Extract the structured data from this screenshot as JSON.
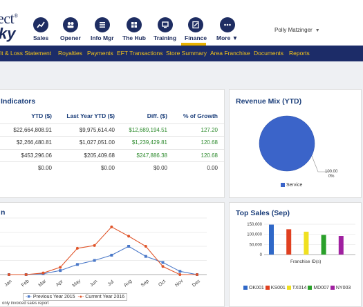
{
  "brand": {
    "line1": "ect",
    "reg": "®",
    "line2": "ky"
  },
  "nav": [
    {
      "label": "Sales",
      "icon": "chart-icon"
    },
    {
      "label": "Opener",
      "icon": "group-icon"
    },
    {
      "label": "Info Mgr",
      "icon": "list-icon"
    },
    {
      "label": "The Hub",
      "icon": "hub-icon"
    },
    {
      "label": "Training",
      "icon": "training-icon"
    },
    {
      "label": "Finance",
      "icon": "finance-icon"
    },
    {
      "label": "More",
      "icon": "more-icon"
    }
  ],
  "user": {
    "name": "Polly Matzinger"
  },
  "subnav": [
    "fit & Loss Statement",
    "Royalties",
    "Payments",
    "EFT Transactions",
    "Store Summary",
    "Area Franchise",
    "Documents",
    "Reports"
  ],
  "indicators": {
    "title": "Indicators",
    "headers": [
      "YTD ($)",
      "Last Year YTD ($)",
      "Diff. ($)",
      "% of Growth"
    ],
    "rows": [
      [
        "$22,664,808.91",
        "$9,975,614.40",
        "$12,689,194.51",
        "127.20"
      ],
      [
        "$2,266,480.81",
        "$1,027,051.00",
        "$1,239,429.81",
        "120.68"
      ],
      [
        "$453,296.06",
        "$205,409.68",
        "$247,886.38",
        "120.68"
      ],
      [
        "$0.00",
        "$0.00",
        "$0.00",
        "0.00"
      ]
    ]
  },
  "revenue_mix": {
    "title": "Revenue Mix (YTD)",
    "callout_value": "100.00",
    "callout_pct": "0%",
    "legend": "Service",
    "color": "#3b64c9"
  },
  "top_sales": {
    "title": "Top Sales (Sep)",
    "xlabel": "Franchise ID(s)"
  },
  "footer_note": "only invoiced sales report",
  "chart_data": [
    {
      "type": "line",
      "categories": [
        "Jan",
        "Feb",
        "Mar",
        "Apr",
        "May",
        "Jun",
        "Jul",
        "Aug",
        "Sep",
        "Oct",
        "Nov",
        "Dec"
      ],
      "series": [
        {
          "name": "Previous Year 2015",
          "color": "#4a78c8",
          "values": [
            0,
            0,
            2,
            10,
            25,
            35,
            48,
            70,
            45,
            30,
            8,
            0
          ]
        },
        {
          "name": "Current Year 2016",
          "color": "#e0552a",
          "values": [
            0,
            0,
            4,
            18,
            65,
            72,
            118,
            95,
            70,
            20,
            0,
            0
          ]
        }
      ],
      "ylim": [
        0,
        140
      ]
    },
    {
      "type": "bar",
      "title": "Top Sales (Sep)",
      "xlabel": "Franchise ID(s)",
      "yticks": [
        "150,000",
        "100,000",
        "50,000",
        "0"
      ],
      "ylim": [
        0,
        150000
      ],
      "categories": [
        "OK001",
        "KS001",
        "TX014",
        "MD007",
        "NY003"
      ],
      "values": [
        148000,
        125000,
        113000,
        97000,
        92000
      ],
      "colors": [
        "#2f68c8",
        "#e04020",
        "#f0e020",
        "#2aa02a",
        "#a020a0"
      ]
    },
    {
      "type": "pie",
      "title": "Revenue Mix (YTD)",
      "labels": [
        "Service"
      ],
      "values": [
        100.0
      ]
    }
  ]
}
